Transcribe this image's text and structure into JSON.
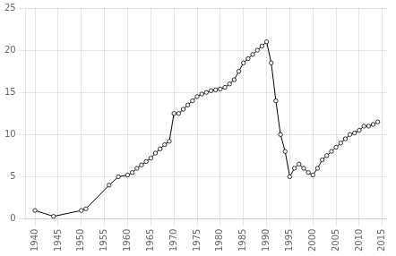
{
  "chart_data": {
    "type": "line",
    "x": [
      1940,
      1944,
      1950,
      1951,
      1956,
      1958,
      1960,
      1961,
      1962,
      1963,
      1964,
      1965,
      1966,
      1967,
      1968,
      1969,
      1970,
      1971,
      1972,
      1973,
      1974,
      1975,
      1976,
      1977,
      1978,
      1979,
      1980,
      1981,
      1982,
      1983,
      1984,
      1985,
      1986,
      1987,
      1988,
      1989,
      1990,
      1991,
      1992,
      1993,
      1994,
      1995,
      1996,
      1997,
      1998,
      1999,
      2000,
      2001,
      2002,
      2003,
      2004,
      2005,
      2006,
      2007,
      2008,
      2009,
      2010,
      2011,
      2012,
      2013,
      2014
    ],
    "values": [
      1.0,
      0.3,
      1.0,
      1.2,
      4.0,
      5.0,
      5.2,
      5.5,
      6.0,
      6.4,
      6.8,
      7.2,
      7.8,
      8.3,
      8.8,
      9.2,
      12.5,
      12.5,
      13.0,
      13.5,
      14.0,
      14.5,
      14.8,
      15.0,
      15.2,
      15.3,
      15.4,
      15.6,
      16.0,
      16.5,
      17.5,
      18.5,
      19.0,
      19.5,
      20.0,
      20.5,
      21.0,
      18.5,
      14.0,
      10.0,
      8.0,
      5.0,
      6.0,
      6.5,
      6.0,
      5.5,
      5.2,
      6.0,
      7.0,
      7.5,
      8.0,
      8.5,
      9.0,
      9.5,
      10.0,
      10.2,
      10.5,
      11.0,
      11.0,
      11.2,
      11.5
    ],
    "color": "#000000",
    "marker": "circle",
    "xlim": [
      1938,
      2016
    ],
    "xticks": [
      1940,
      1945,
      1950,
      1955,
      1960,
      1965,
      1970,
      1975,
      1980,
      1985,
      1990,
      1995,
      2000,
      2005,
      2010,
      2015
    ],
    "ylim": [
      0,
      25
    ],
    "yticks": [
      0,
      5,
      10,
      15,
      20,
      25
    ],
    "grid": true
  }
}
